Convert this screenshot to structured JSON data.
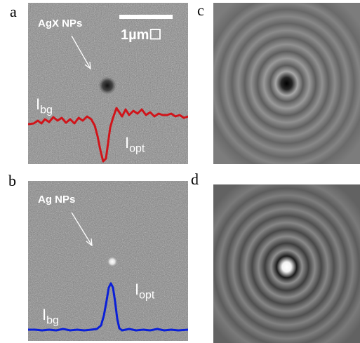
{
  "panels": {
    "a": {
      "letter": "a",
      "np_label": "AgX NPs",
      "scale_bar_label": "1µm☐",
      "bg_label": "I",
      "bg_sub": "bg",
      "opt_label": "I",
      "opt_sub": "opt",
      "profile_color": "#d0141a",
      "particle": "dark"
    },
    "b": {
      "letter": "b",
      "np_label": "Ag NPs",
      "bg_label": "I",
      "bg_sub": "bg",
      "opt_label": "I",
      "opt_sub": "opt",
      "profile_color": "#0a1fd8",
      "particle": "bright"
    },
    "c": {
      "letter": "c",
      "center": "dark"
    },
    "d": {
      "letter": "d",
      "center": "bright"
    }
  }
}
